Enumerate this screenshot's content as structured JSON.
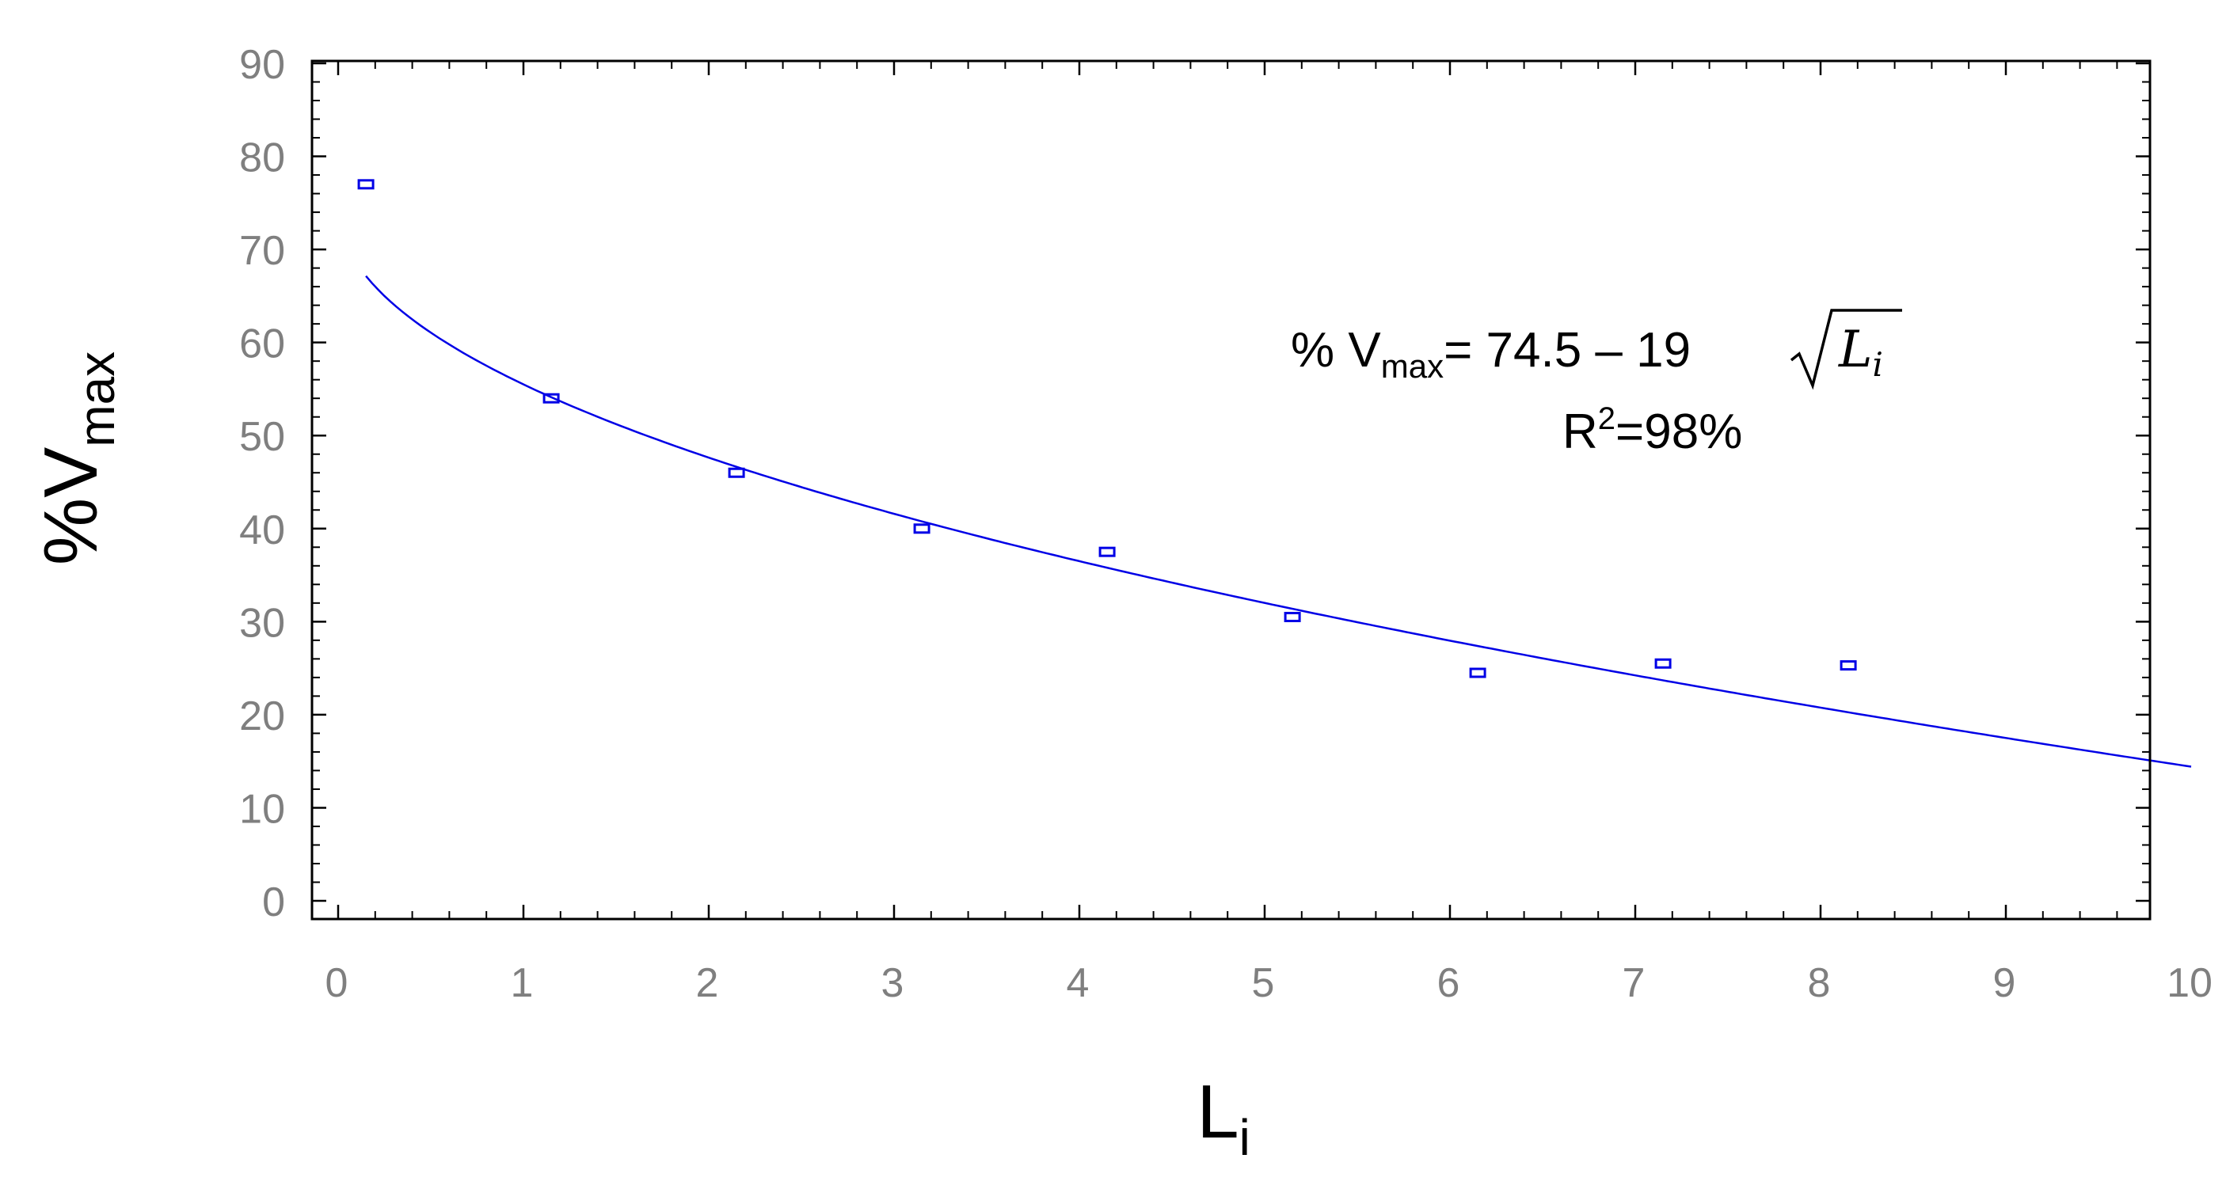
{
  "chart_data": {
    "type": "scatter",
    "xlabel": "L",
    "xlabel_sub": "i",
    "ylabel": "%V",
    "ylabel_sub": "max",
    "xlim": [
      0,
      10
    ],
    "ylim": [
      0,
      90
    ],
    "xticks": [
      "0",
      "1",
      "2",
      "3",
      "4",
      "5",
      "6",
      "7",
      "8",
      "9",
      "10"
    ],
    "yticks": [
      "0",
      "10",
      "20",
      "30",
      "40",
      "50",
      "60",
      "70",
      "80",
      "90"
    ],
    "grid": false,
    "series": [
      {
        "kind": "points",
        "x": [
          0.15,
          1.15,
          2.15,
          3.15,
          4.15,
          5.15,
          6.15,
          7.15,
          8.15
        ],
        "y": [
          77,
          54,
          46,
          40,
          37.5,
          30.5,
          24.5,
          25.5,
          25.3
        ],
        "color": "#0000e6"
      },
      {
        "kind": "fit-line",
        "formula": "% V_max = 74.5 − 19 √L_i",
        "intercept": 74.5,
        "coef": 19,
        "x_range": [
          0.15,
          10
        ],
        "color": "#0000e6"
      }
    ],
    "annotation": {
      "eq_prefix": "% V",
      "eq_sub": "max",
      "eq_body": "= 74.5 – 19 ",
      "eq_sqrt_var": "L",
      "eq_sqrt_sub": "i",
      "r2_prefix": "R",
      "r2_sup": "2",
      "r2_suffix": "=98%"
    }
  }
}
